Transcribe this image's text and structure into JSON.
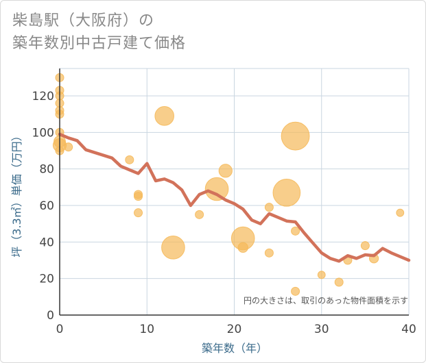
{
  "title_line1": "柴島駅（大阪府）の",
  "title_line2": "築年数別中古戸建て価格",
  "chart_data": {
    "type": "scatter",
    "title": "柴島駅（大阪府）の築年数別中古戸建て価格",
    "xlabel": "築年数（年）",
    "ylabel": "坪（3.3㎡）単価（万円）",
    "xlim": [
      0,
      40
    ],
    "ylim": [
      0,
      135
    ],
    "xticks": [
      0,
      10,
      20,
      30,
      40
    ],
    "yticks": [
      0,
      20,
      40,
      60,
      80,
      100,
      120
    ],
    "grid": true,
    "note": "円の大きさは、取引のあった物件面積を示す",
    "colors": {
      "bubble": "#f5b95a",
      "line": "#d2725a",
      "grid": "#c9d6e0"
    },
    "bubbles": [
      {
        "x": 0,
        "y": 130,
        "size": 1
      },
      {
        "x": 0,
        "y": 123,
        "size": 1
      },
      {
        "x": 0,
        "y": 120,
        "size": 1
      },
      {
        "x": 0,
        "y": 116,
        "size": 1
      },
      {
        "x": 0,
        "y": 112,
        "size": 1
      },
      {
        "x": 0,
        "y": 110,
        "size": 1
      },
      {
        "x": 0,
        "y": 100,
        "size": 1
      },
      {
        "x": 0,
        "y": 95,
        "size": 1.4
      },
      {
        "x": 0,
        "y": 93,
        "size": 1.6
      },
      {
        "x": 0,
        "y": 90,
        "size": 1
      },
      {
        "x": 1,
        "y": 92,
        "size": 1
      },
      {
        "x": 8,
        "y": 85,
        "size": 1
      },
      {
        "x": 9,
        "y": 66,
        "size": 1
      },
      {
        "x": 9,
        "y": 65,
        "size": 1
      },
      {
        "x": 9,
        "y": 56,
        "size": 1
      },
      {
        "x": 12,
        "y": 109,
        "size": 2.3
      },
      {
        "x": 13,
        "y": 37,
        "size": 2.8
      },
      {
        "x": 16,
        "y": 55,
        "size": 1
      },
      {
        "x": 18,
        "y": 69,
        "size": 2.8
      },
      {
        "x": 19,
        "y": 79,
        "size": 1.6
      },
      {
        "x": 21,
        "y": 42,
        "size": 2.8
      },
      {
        "x": 21,
        "y": 37,
        "size": 1.2
      },
      {
        "x": 24,
        "y": 59,
        "size": 1
      },
      {
        "x": 24,
        "y": 34,
        "size": 1
      },
      {
        "x": 26,
        "y": 67,
        "size": 3.3
      },
      {
        "x": 27,
        "y": 98,
        "size": 3.4
      },
      {
        "x": 27,
        "y": 46,
        "size": 1
      },
      {
        "x": 27,
        "y": 13,
        "size": 1
      },
      {
        "x": 30,
        "y": 22,
        "size": 0.9
      },
      {
        "x": 32,
        "y": 18,
        "size": 1
      },
      {
        "x": 33,
        "y": 30,
        "size": 1
      },
      {
        "x": 35,
        "y": 38,
        "size": 1
      },
      {
        "x": 36,
        "y": 31,
        "size": 1.1
      },
      {
        "x": 39,
        "y": 56,
        "size": 0.9
      }
    ],
    "trend": {
      "x": [
        0,
        1,
        2,
        3,
        4,
        5,
        6,
        7,
        8,
        9,
        10,
        11,
        12,
        13,
        14,
        15,
        16,
        17,
        18,
        19,
        20,
        21,
        22,
        23,
        24,
        25,
        26,
        27,
        28,
        29,
        30,
        31,
        32,
        33,
        34,
        35,
        36,
        37,
        38,
        39,
        40
      ],
      "y": [
        99,
        97,
        95.5,
        90.5,
        89,
        87.5,
        86,
        81.5,
        79.5,
        77.5,
        83,
        73.5,
        74.5,
        72.5,
        68.5,
        60,
        66,
        68,
        66,
        63,
        61,
        58,
        52,
        50,
        55.5,
        53.5,
        51.5,
        51,
        45,
        39.5,
        34,
        31,
        29.5,
        32.5,
        31,
        33,
        32.5,
        36.5,
        34,
        32,
        30
      ]
    }
  }
}
